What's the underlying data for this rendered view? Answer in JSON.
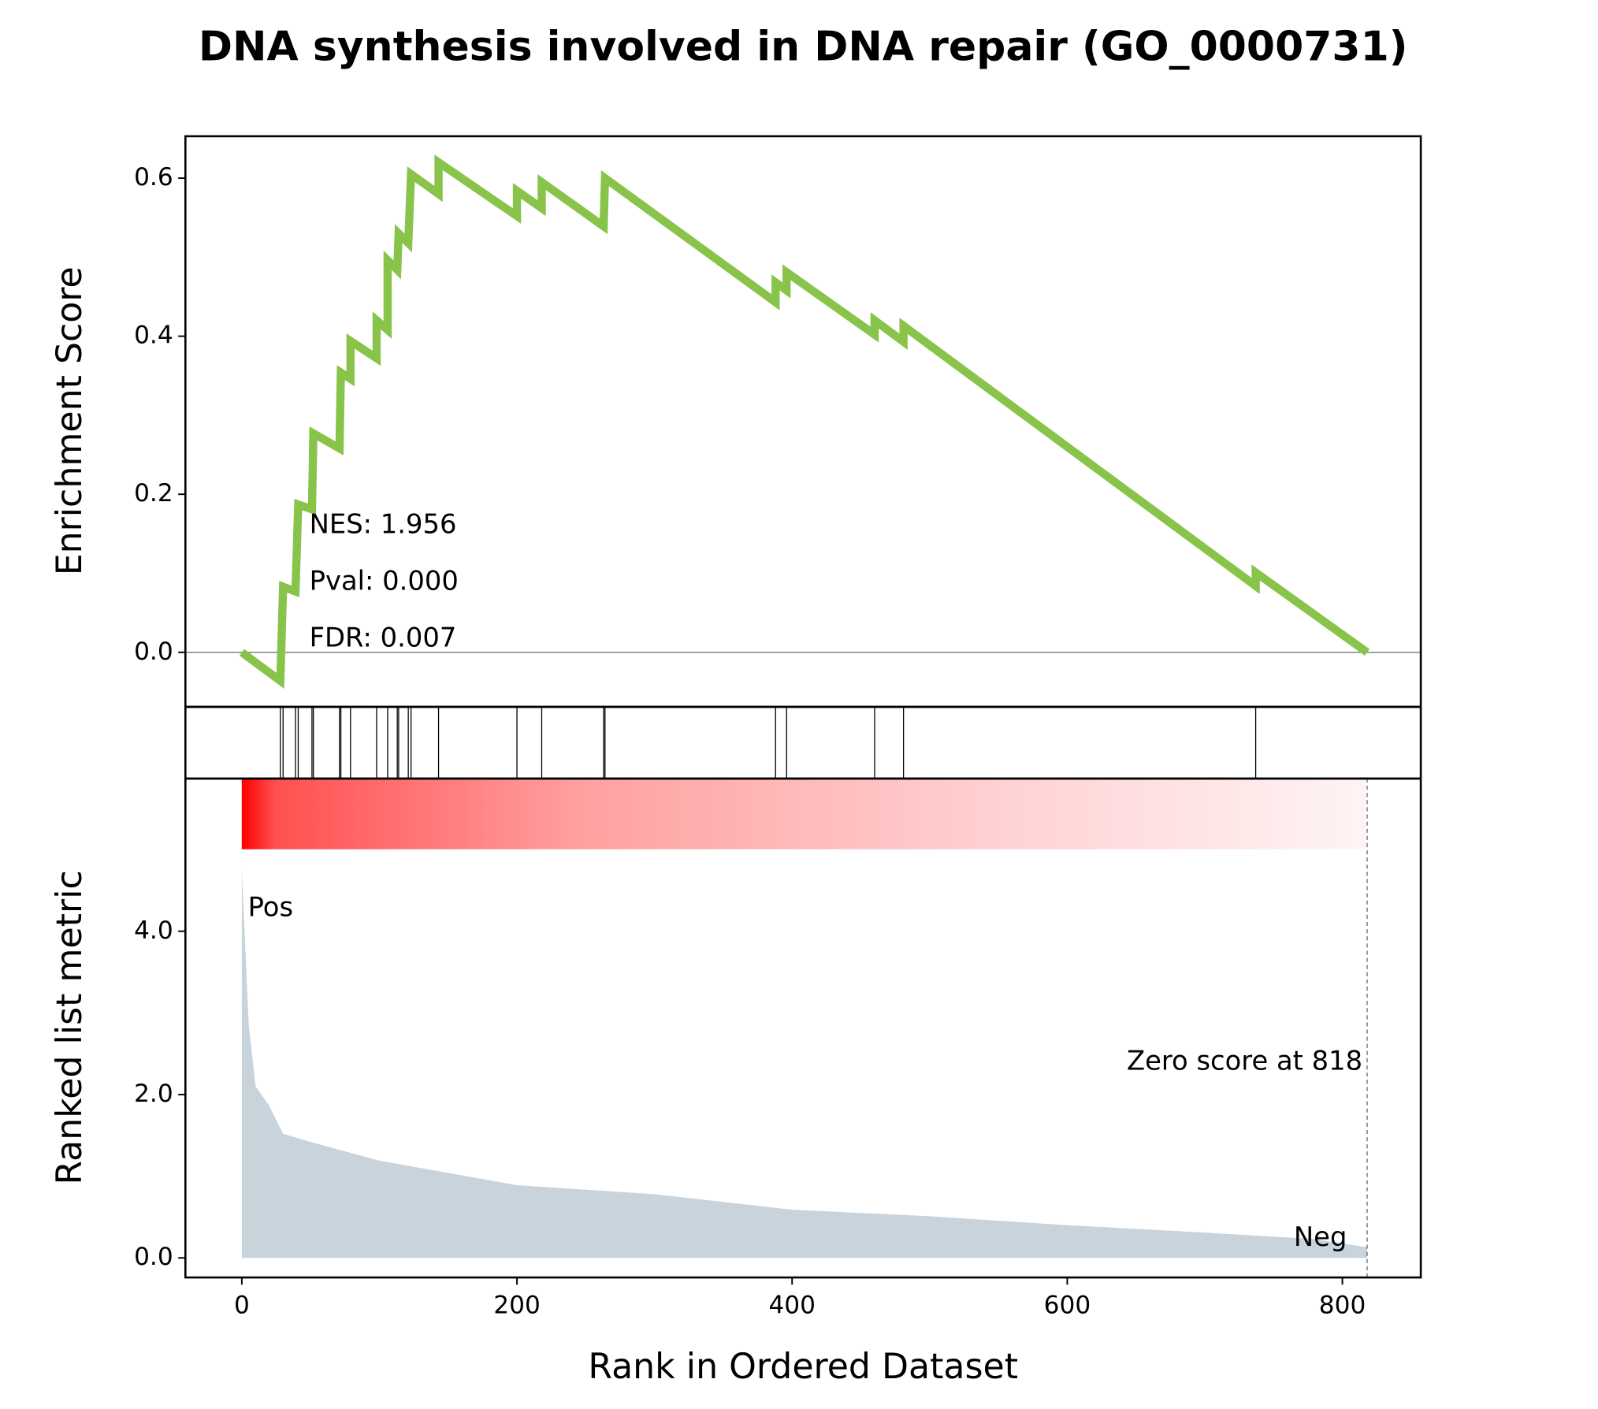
{
  "chart_data": [
    {
      "type": "line",
      "title": "DNA synthesis involved in DNA repair (GO_0000731)",
      "ylabel": "Enrichment Score",
      "color": "#88c34a",
      "x": [
        0,
        28,
        30,
        39,
        41,
        51,
        52,
        71,
        72,
        79,
        79,
        98,
        98,
        106,
        106,
        113,
        114,
        121,
        123,
        143,
        143,
        200,
        200,
        218,
        218,
        263,
        264,
        388,
        388,
        396,
        396,
        460,
        460,
        481,
        481,
        737,
        737,
        818
      ],
      "values": [
        0,
        -0.036,
        0.083,
        0.077,
        0.187,
        0.181,
        0.277,
        0.258,
        0.354,
        0.346,
        0.394,
        0.372,
        0.42,
        0.408,
        0.496,
        0.484,
        0.53,
        0.518,
        0.605,
        0.58,
        0.62,
        0.552,
        0.584,
        0.562,
        0.595,
        0.539,
        0.6,
        0.443,
        0.468,
        0.458,
        0.481,
        0.402,
        0.42,
        0.393,
        0.413,
        0.084,
        0.101,
        0
      ],
      "xlim": [
        -41,
        857
      ],
      "ylim": [
        -0.069,
        0.653
      ],
      "yticks": [
        {
          "value": 0,
          "label": "0.0"
        },
        0.2,
        0.4,
        0.6
      ],
      "annotations": [
        "NES: 1.956",
        "Pval: 0.000",
        "FDR: 0.007"
      ]
    },
    {
      "type": "hits",
      "x": [
        28,
        30,
        39,
        41,
        51,
        52,
        71,
        72,
        79,
        98,
        106,
        113,
        114,
        121,
        123,
        143,
        200,
        218,
        263,
        264,
        388,
        396,
        460,
        481,
        737
      ],
      "xlim": [
        -41,
        857
      ]
    },
    {
      "type": "area",
      "ylabel": "Ranked list metric",
      "xlabel": "Rank in Ordered Dataset",
      "color": "#c9d3dc",
      "x": [
        0,
        5,
        10,
        20,
        30,
        50,
        100,
        200,
        300,
        400,
        500,
        600,
        700,
        780,
        818
      ],
      "values": [
        4.76,
        2.86,
        2.1,
        1.86,
        1.52,
        1.42,
        1.19,
        0.89,
        0.78,
        0.59,
        0.51,
        0.4,
        0.31,
        0.23,
        0.13
      ],
      "xlim": [
        -41,
        857
      ],
      "ylim": [
        -0.24,
        5.87
      ],
      "xticks": [
        0,
        200,
        400,
        600,
        800
      ],
      "yticks": [
        {
          "value": 0,
          "label": "0.0"
        },
        {
          "value": 2,
          "label": "2.0"
        },
        {
          "value": 4,
          "label": "4.0"
        }
      ],
      "pos_label": "Pos",
      "neg_label": "Neg",
      "zero_label": "Zero score at 818"
    }
  ]
}
